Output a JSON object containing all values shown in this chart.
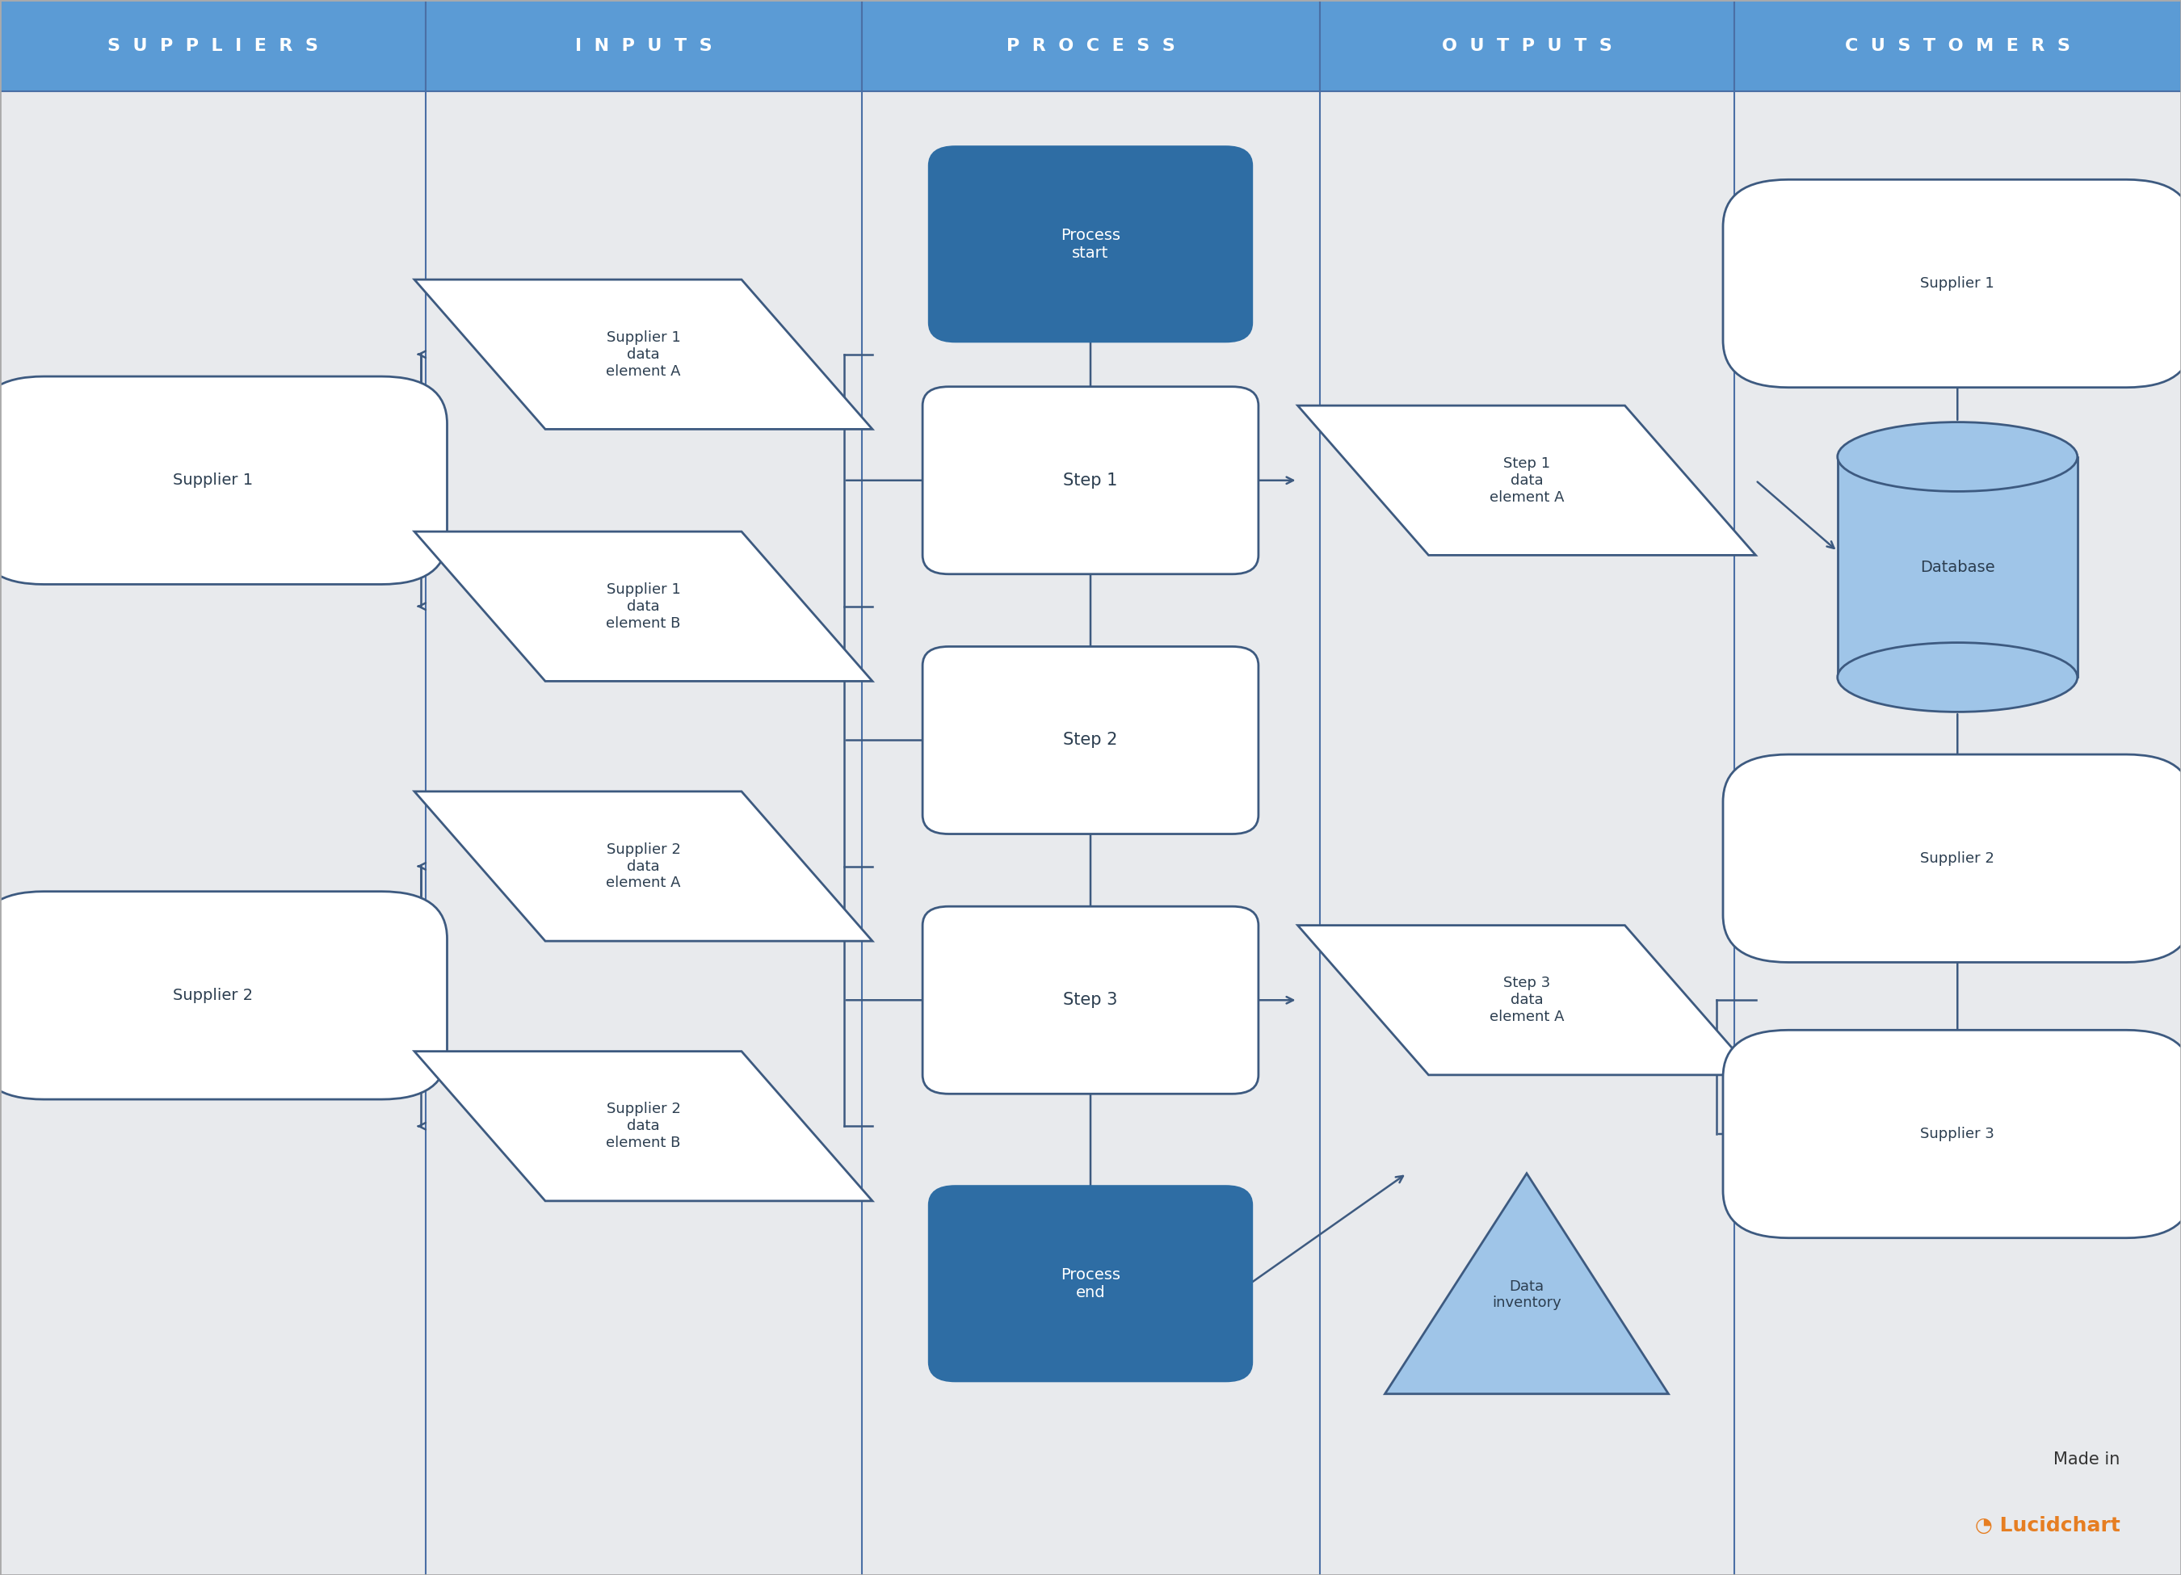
{
  "bg_color": "#e8eaed",
  "header_color": "#5b9bd5",
  "header_text_color": "#ffffff",
  "divider_color": "#4a6fa5",
  "columns": [
    "SUPPLIERS",
    "INPUTS",
    "PROCESS",
    "OUTPUTS",
    "CUSTOMERS"
  ],
  "fig_w": 27.0,
  "fig_h": 19.5,
  "body_bg": "#e8eaed",
  "shape_fill": "#ffffff",
  "shape_border": "#3d5a80",
  "dark_blue_fill": "#2e6da4",
  "light_blue_fill": "#9fc5e8",
  "font_color": "#2c3e50",
  "arrow_color": "#3d5a80"
}
